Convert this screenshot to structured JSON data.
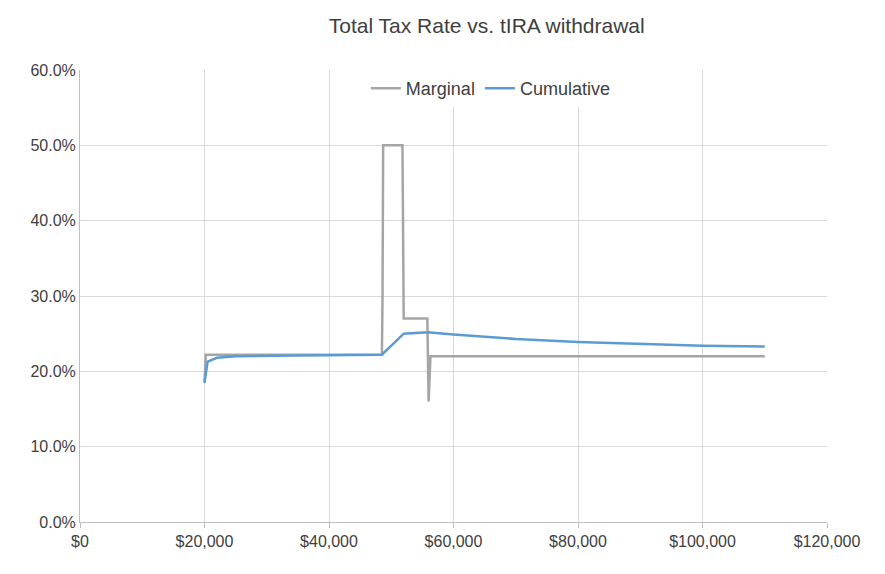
{
  "chart_data": {
    "type": "line",
    "title": "Total Tax Rate vs. tIRA withdrawal",
    "series": [
      {
        "name": "Marginal",
        "color": "#a5a5a5",
        "x": [
          20000,
          20200,
          48500,
          48600,
          48700,
          51800,
          52000,
          55800,
          56000,
          56300,
          110000
        ],
        "values": [
          18.5,
          22.2,
          22.2,
          30,
          50,
          50,
          27,
          27,
          16,
          22,
          22
        ]
      },
      {
        "name": "Cumulative",
        "color": "#5b9bd5",
        "x": [
          20000,
          20500,
          22000,
          25000,
          35000,
          48500,
          52000,
          55800,
          60000,
          70000,
          80000,
          90000,
          100000,
          110000
        ],
        "values": [
          18.5,
          21.3,
          21.8,
          22.0,
          22.1,
          22.2,
          25.0,
          25.2,
          24.9,
          24.3,
          23.9,
          23.6,
          23.4,
          23.3
        ]
      }
    ],
    "xlim": [
      0,
      120000
    ],
    "xticks": [
      {
        "value": 0,
        "label": "$0"
      },
      {
        "value": 20000,
        "label": "$20,000"
      },
      {
        "value": 40000,
        "label": "$40,000"
      },
      {
        "value": 60000,
        "label": "$60,000"
      },
      {
        "value": 80000,
        "label": "$80,000"
      },
      {
        "value": 100000,
        "label": "$100,000"
      },
      {
        "value": 120000,
        "label": "$120,000"
      }
    ],
    "ylim": [
      0,
      60
    ],
    "yticks": [
      {
        "value": 0,
        "label": "0.0%"
      },
      {
        "value": 10,
        "label": "10.0%"
      },
      {
        "value": 20,
        "label": "20.0%"
      },
      {
        "value": 30,
        "label": "30.0%"
      },
      {
        "value": 40,
        "label": "40.0%"
      },
      {
        "value": 50,
        "label": "50.0%"
      },
      {
        "value": 60,
        "label": "60.0%"
      }
    ],
    "grid": true,
    "legend": "top"
  }
}
